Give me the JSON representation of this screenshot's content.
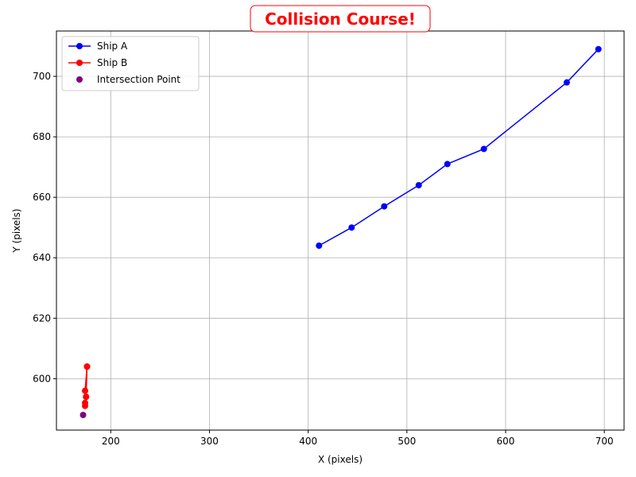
{
  "chart_data": {
    "type": "line",
    "title": "Collision Course!",
    "title_color": "#ff0000",
    "xlabel": "X (pixels)",
    "ylabel": "Y (pixels)",
    "xlim": [
      145,
      720
    ],
    "ylim": [
      583,
      715
    ],
    "xticks": [
      200,
      300,
      400,
      500,
      600,
      700
    ],
    "yticks": [
      600,
      620,
      640,
      660,
      680,
      700
    ],
    "grid": true,
    "legend_position": "top-left",
    "series": [
      {
        "name": "Ship A",
        "kind": "line",
        "color": "#0000ff",
        "x": [
          411,
          444,
          477,
          512,
          541,
          578,
          662,
          694
        ],
        "y": [
          644,
          650,
          657,
          664,
          671,
          676,
          698,
          709
        ]
      },
      {
        "name": "Ship B",
        "kind": "line",
        "color": "#ff0000",
        "x": [
          176,
          174,
          175,
          174,
          174,
          175,
          176
        ],
        "y": [
          604,
          596,
          594,
          592,
          591,
          594,
          604
        ]
      },
      {
        "name": "Intersection Point",
        "kind": "scatter",
        "color": "#800080",
        "x": [
          172
        ],
        "y": [
          588
        ]
      }
    ]
  }
}
